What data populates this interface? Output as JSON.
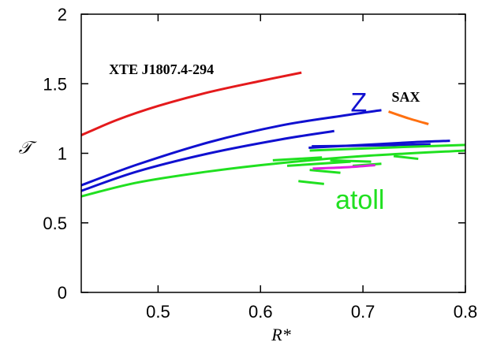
{
  "chart_data": {
    "type": "line",
    "xlabel": "R*",
    "ylabel": "𝒯",
    "xlim": [
      0.425,
      0.8
    ],
    "ylim": [
      0,
      2
    ],
    "x_ticks": [
      "0.5",
      "0.6",
      "0.7",
      "0.8"
    ],
    "x_tick_values": [
      0.5,
      0.6,
      0.7,
      0.8
    ],
    "y_ticks": [
      "0",
      "0.5",
      "1",
      "1.5",
      "2"
    ],
    "y_tick_values": [
      0,
      0.5,
      1,
      1.5,
      2
    ],
    "grid": false,
    "colors": {
      "xte": "#e41a1c",
      "z": "#1010d0",
      "sax": "#ff7010",
      "atoll": "#20e020",
      "magenta": "#e020e0"
    },
    "annotations": [
      {
        "text": "XTE J1807.4-294",
        "x": 0.452,
        "y": 1.57,
        "color": "#000000",
        "style": "serif"
      },
      {
        "text": "Z",
        "x": 0.688,
        "y": 1.3,
        "color": "#1010d0",
        "style": "sans"
      },
      {
        "text": "SAX",
        "x": 0.728,
        "y": 1.37,
        "color": "#000000",
        "style": "serif"
      },
      {
        "text": "atoll",
        "x": 0.673,
        "y": 0.6,
        "color": "#20e020",
        "style": "sans"
      }
    ],
    "series": [
      {
        "group": "xte",
        "color": "#e41a1c",
        "points": [
          [
            0.425,
            1.13
          ],
          [
            0.46,
            1.24
          ],
          [
            0.5,
            1.34
          ],
          [
            0.55,
            1.44
          ],
          [
            0.6,
            1.52
          ],
          [
            0.64,
            1.58
          ]
        ]
      },
      {
        "group": "z",
        "color": "#1010d0",
        "points": [
          [
            0.425,
            0.77
          ],
          [
            0.48,
            0.92
          ],
          [
            0.55,
            1.08
          ],
          [
            0.62,
            1.2
          ],
          [
            0.68,
            1.27
          ],
          [
            0.718,
            1.31
          ]
        ]
      },
      {
        "group": "z",
        "color": "#1010d0",
        "points": [
          [
            0.425,
            0.73
          ],
          [
            0.48,
            0.87
          ],
          [
            0.55,
            1.0
          ],
          [
            0.62,
            1.1
          ],
          [
            0.672,
            1.16
          ]
        ]
      },
      {
        "group": "z",
        "color": "#1010d0",
        "points": [
          [
            0.647,
            1.04
          ],
          [
            0.7,
            1.06
          ],
          [
            0.75,
            1.08
          ],
          [
            0.785,
            1.09
          ]
        ]
      },
      {
        "group": "z",
        "color": "#1010d0",
        "points": [
          [
            0.65,
            1.05
          ],
          [
            0.7,
            1.055
          ],
          [
            0.766,
            1.065
          ]
        ]
      },
      {
        "group": "sax",
        "color": "#ff7010",
        "points": [
          [
            0.725,
            1.3
          ],
          [
            0.745,
            1.25
          ],
          [
            0.764,
            1.21
          ]
        ]
      },
      {
        "group": "atoll",
        "color": "#20e020",
        "points": [
          [
            0.425,
            0.69
          ],
          [
            0.48,
            0.79
          ],
          [
            0.55,
            0.87
          ],
          [
            0.62,
            0.93
          ],
          [
            0.7,
            0.98
          ],
          [
            0.8,
            1.02
          ]
        ]
      },
      {
        "group": "atoll",
        "color": "#20e020",
        "points": [
          [
            0.648,
            1.02
          ],
          [
            0.72,
            1.04
          ],
          [
            0.8,
            1.06
          ]
        ]
      },
      {
        "group": "atoll",
        "color": "#20e020",
        "points": [
          [
            0.612,
            0.95
          ],
          [
            0.66,
            0.97
          ]
        ]
      },
      {
        "group": "atoll",
        "color": "#20e020",
        "points": [
          [
            0.626,
            0.91
          ],
          [
            0.688,
            0.94
          ]
        ]
      },
      {
        "group": "atoll",
        "color": "#20e020",
        "points": [
          [
            0.648,
            0.88
          ],
          [
            0.678,
            0.86
          ]
        ]
      },
      {
        "group": "atoll",
        "color": "#20e020",
        "points": [
          [
            0.668,
            0.95
          ],
          [
            0.708,
            0.94
          ]
        ]
      },
      {
        "group": "atoll",
        "color": "#20e020",
        "points": [
          [
            0.73,
            0.98
          ],
          [
            0.754,
            0.96
          ]
        ]
      },
      {
        "group": "atoll",
        "color": "#20e020",
        "points": [
          [
            0.69,
            0.91
          ],
          [
            0.718,
            0.925
          ]
        ]
      },
      {
        "group": "atoll",
        "color": "#20e020",
        "points": [
          [
            0.637,
            0.8
          ],
          [
            0.662,
            0.78
          ]
        ]
      },
      {
        "group": "magenta",
        "color": "#e020e0",
        "points": [
          [
            0.651,
            0.89
          ],
          [
            0.685,
            0.9
          ],
          [
            0.712,
            0.915
          ]
        ]
      }
    ]
  }
}
